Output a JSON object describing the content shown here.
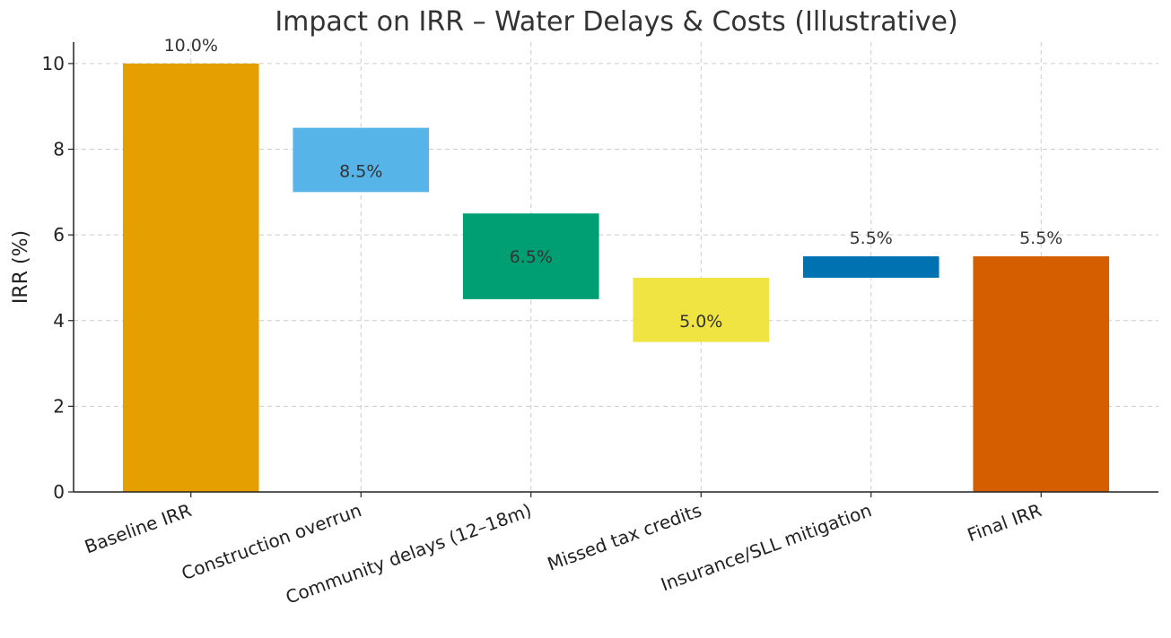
{
  "chart_data": {
    "type": "bar",
    "subtype": "waterfall",
    "title": "Impact on IRR – Water Delays & Costs (Illustrative)",
    "xlabel": "",
    "ylabel": "IRR (%)",
    "ylim": [
      0,
      10.5
    ],
    "yticks": [
      0,
      2,
      4,
      6,
      8,
      10
    ],
    "grid": true,
    "categories": [
      "Baseline IRR",
      "Construction overrun",
      "Community delays (12–18m)",
      "Missed tax credits",
      "Insurance/SLL mitigation",
      "Final IRR"
    ],
    "bars": [
      {
        "bottom": 0,
        "top": 10.0,
        "label": "10.0%",
        "color": "#E69F00",
        "kind": "total"
      },
      {
        "bottom": 7.0,
        "top": 8.5,
        "label": "8.5%",
        "color": "#56B4E9",
        "kind": "decrease"
      },
      {
        "bottom": 4.5,
        "top": 6.5,
        "label": "6.5%",
        "color": "#009E73",
        "kind": "decrease"
      },
      {
        "bottom": 3.5,
        "top": 5.0,
        "label": "5.0%",
        "color": "#F0E442",
        "kind": "decrease"
      },
      {
        "bottom": 5.0,
        "top": 5.5,
        "label": "5.5%",
        "color": "#0072B2",
        "kind": "increase"
      },
      {
        "bottom": 0,
        "top": 5.5,
        "label": "5.5%",
        "color": "#D55E00",
        "kind": "total"
      }
    ]
  }
}
